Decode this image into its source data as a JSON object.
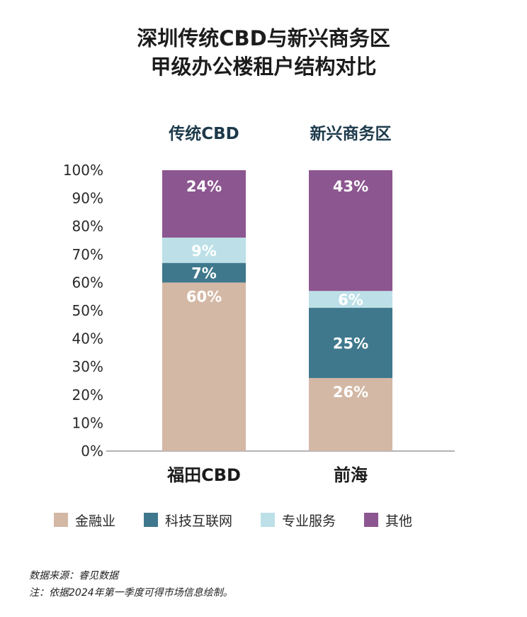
{
  "title_lines": [
    "深圳传统CBD与新兴商务区",
    "甲级办公楼租户结构对比"
  ],
  "notes": [
    "数据来源：睿见数据",
    "注：依据2024年第一季度可得市场信息绘制。"
  ],
  "colors": {
    "金融业": "#d3b8a5",
    "科技互联网": "#3f788d",
    "专业服务": "#bde0e8",
    "其他": "#8c5690",
    "axis": "#9a9a9a",
    "group_header": "#1d3a4b"
  },
  "chart_data": {
    "type": "bar",
    "stacked": true,
    "normalized": true,
    "groups": [
      "传统CBD",
      "新兴商务区"
    ],
    "categories": [
      "福田CBD",
      "前海"
    ],
    "y_ticks": [
      "0%",
      "10%",
      "20%",
      "30%",
      "40%",
      "50%",
      "60%",
      "70%",
      "80%",
      "90%",
      "100%"
    ],
    "ylim": [
      0,
      100
    ],
    "series": [
      {
        "name": "金融业",
        "values": [
          60,
          26
        ],
        "labels": [
          "60%",
          "26%"
        ]
      },
      {
        "name": "科技互联网",
        "values": [
          7,
          25
        ],
        "labels": [
          "7%",
          "25%"
        ]
      },
      {
        "name": "专业服务",
        "values": [
          9,
          6
        ],
        "labels": [
          "9%",
          "6%"
        ]
      },
      {
        "name": "其他",
        "values": [
          24,
          43
        ],
        "labels": [
          "24%",
          "43%"
        ]
      }
    ],
    "legend_position": "bottom",
    "grid": false
  }
}
